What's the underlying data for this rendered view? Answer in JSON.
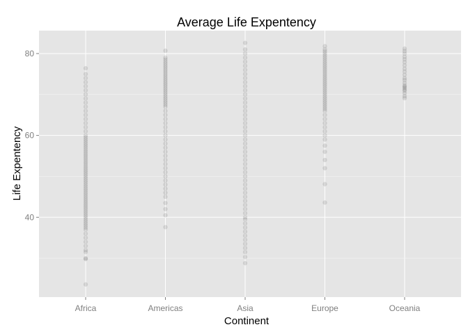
{
  "chart_data": {
    "type": "scatter",
    "title": "Average Life Expentency",
    "xlabel": "Continent",
    "ylabel": "Life Expentency",
    "categories": [
      "Africa",
      "Americas",
      "Asia",
      "Europe",
      "Oceania"
    ],
    "ylim": [
      20.5,
      85.6
    ],
    "yticks": [
      40,
      60,
      80
    ],
    "grid": true,
    "legend": "none",
    "point_color": "#000000",
    "point_alpha": 0.1,
    "panel_background": "#e5e5e5",
    "gridline_color": "#ffffff",
    "series": [
      {
        "category": "Africa",
        "values": [
          23.6,
          29.8,
          30.0,
          31.5,
          32.0,
          33.0,
          34.0,
          35.0,
          36.0,
          37.0,
          37.5,
          38.0,
          38.5,
          39.0,
          39.5,
          40.0,
          40.5,
          41.0,
          41.5,
          42.0,
          42.5,
          43.0,
          43.5,
          44.0,
          44.5,
          45.0,
          45.5,
          46.0,
          46.5,
          47.0,
          47.5,
          48.0,
          48.5,
          49.0,
          49.5,
          50.0,
          50.5,
          51.0,
          51.5,
          52.0,
          52.5,
          53.0,
          53.5,
          54.0,
          54.5,
          55.0,
          55.5,
          56.0,
          56.5,
          57.0,
          57.5,
          58.0,
          58.5,
          59.0,
          59.5,
          60.0,
          61.0,
          62.0,
          63.0,
          64.0,
          65.0,
          66.0,
          67.0,
          68.0,
          69.0,
          70.0,
          71.0,
          72.0,
          73.0,
          74.0,
          75.0,
          76.4
        ]
      },
      {
        "category": "Americas",
        "values": [
          37.6,
          40.5,
          42.0,
          43.5,
          45.0,
          46.0,
          47.0,
          48.0,
          49.0,
          50.0,
          51.0,
          52.0,
          53.0,
          54.0,
          55.0,
          56.0,
          57.0,
          58.0,
          59.0,
          60.0,
          61.0,
          62.0,
          63.0,
          64.0,
          65.0,
          66.0,
          67.0,
          67.5,
          68.0,
          68.5,
          69.0,
          69.5,
          70.0,
          70.5,
          71.0,
          71.5,
          72.0,
          72.5,
          73.0,
          73.5,
          74.0,
          74.5,
          75.0,
          75.5,
          76.0,
          76.5,
          77.0,
          77.5,
          78.0,
          78.5,
          79.0,
          80.7
        ]
      },
      {
        "category": "Asia",
        "values": [
          28.8,
          30.3,
          31.5,
          32.5,
          33.5,
          34.5,
          35.5,
          36.5,
          37.5,
          38.5,
          39.5,
          40.0,
          41.0,
          42.0,
          43.0,
          44.0,
          45.0,
          46.0,
          47.0,
          48.0,
          49.0,
          50.0,
          51.0,
          52.0,
          53.0,
          54.0,
          55.0,
          56.0,
          57.0,
          58.0,
          59.0,
          60.0,
          61.0,
          62.0,
          63.0,
          64.0,
          65.0,
          66.0,
          67.0,
          68.0,
          69.0,
          70.0,
          71.0,
          72.0,
          73.0,
          74.0,
          75.0,
          76.0,
          77.0,
          78.0,
          79.0,
          80.0,
          81.0,
          82.6
        ]
      },
      {
        "category": "Europe",
        "values": [
          43.6,
          48.1,
          52.0,
          54.0,
          56.0,
          57.5,
          59.0,
          60.0,
          61.0,
          62.0,
          63.0,
          64.0,
          65.0,
          66.0,
          66.5,
          67.0,
          67.5,
          68.0,
          68.5,
          69.0,
          69.5,
          70.0,
          70.5,
          71.0,
          71.5,
          72.0,
          72.5,
          73.0,
          73.5,
          74.0,
          74.5,
          75.0,
          75.5,
          76.0,
          76.5,
          77.0,
          77.5,
          78.0,
          78.5,
          79.0,
          79.5,
          80.0,
          80.5,
          81.0,
          81.8
        ]
      },
      {
        "category": "Oceania",
        "values": [
          69.1,
          69.6,
          70.3,
          70.9,
          71.2,
          71.6,
          71.9,
          72.2,
          72.8,
          73.5,
          74.0,
          74.8,
          75.6,
          76.3,
          77.1,
          77.9,
          78.6,
          79.2,
          80.0,
          80.6,
          81.2
        ]
      }
    ]
  }
}
